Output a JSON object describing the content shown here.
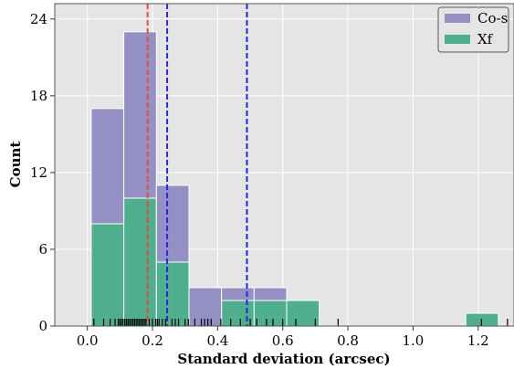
{
  "chart_data": {
    "type": "bar",
    "subtype": "stacked-histogram",
    "xlabel": "Standard deviation (arcsec)",
    "ylabel": "Count",
    "xlim": [
      -0.1,
      1.31
    ],
    "ylim": [
      0,
      25.2
    ],
    "xticks": [
      0.0,
      0.2,
      0.4,
      0.6,
      0.8,
      1.0,
      1.2
    ],
    "xtick_labels": [
      "0.0",
      "0.2",
      "0.4",
      "0.6",
      "0.8",
      "1.0",
      "1.2"
    ],
    "yticks": [
      0,
      6,
      12,
      18,
      24
    ],
    "ytick_labels": [
      "0",
      "6",
      "12",
      "18",
      "24"
    ],
    "grid": true,
    "legend_position": "top-right",
    "bin_edges": [
      0.012,
      0.212,
      0.412,
      0.612,
      0.812,
      1.012,
      1.212
    ],
    "bins": [
      {
        "x0": 0.012,
        "x1": 0.112
      },
      {
        "x0": 0.112,
        "x1": 0.212
      },
      {
        "x0": 0.212,
        "x1": 0.312
      },
      {
        "x0": 0.312,
        "x1": 0.412
      },
      {
        "x0": 0.412,
        "x1": 0.512
      },
      {
        "x0": 0.512,
        "x1": 0.612
      },
      {
        "x0": 0.612,
        "x1": 0.712
      },
      {
        "x0": 0.712,
        "x1": 0.812
      },
      {
        "x0": 1.162,
        "x1": 1.262
      }
    ],
    "series": [
      {
        "name": "Xf",
        "color": "#4fae8c",
        "values": [
          8,
          10,
          5,
          0,
          2,
          2,
          2,
          0,
          1
        ]
      },
      {
        "name": "Co-s",
        "color": "#9490c3",
        "values": [
          9,
          13,
          6,
          3,
          1,
          1,
          0,
          0,
          0
        ]
      }
    ],
    "vlines": [
      {
        "x": 0.185,
        "color": "#e8473c"
      },
      {
        "x": 0.245,
        "color": "#2424e8"
      },
      {
        "x": 0.49,
        "color": "#2424e8"
      }
    ],
    "rug": [
      0.02,
      0.05,
      0.07,
      0.085,
      0.095,
      0.1,
      0.105,
      0.11,
      0.115,
      0.12,
      0.125,
      0.13,
      0.135,
      0.14,
      0.145,
      0.15,
      0.155,
      0.16,
      0.165,
      0.17,
      0.175,
      0.18,
      0.19,
      0.2,
      0.21,
      0.215,
      0.22,
      0.23,
      0.24,
      0.26,
      0.27,
      0.28,
      0.3,
      0.31,
      0.33,
      0.35,
      0.36,
      0.37,
      0.38,
      0.41,
      0.44,
      0.47,
      0.5,
      0.52,
      0.55,
      0.57,
      0.6,
      0.64,
      0.7,
      0.77,
      1.21,
      1.29
    ]
  }
}
